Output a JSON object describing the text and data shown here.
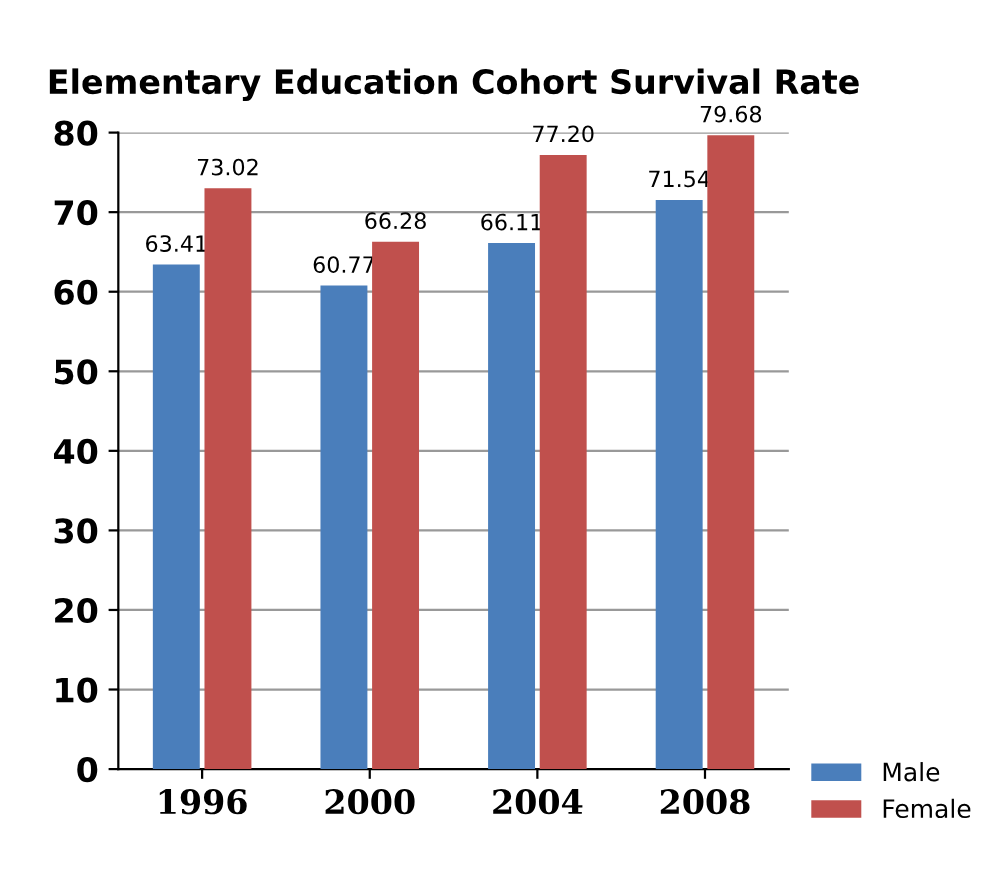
{
  "chart_data": {
    "type": "bar",
    "title": "Elementary Education Cohort Survival Rate",
    "categories": [
      "1996",
      "2000",
      "2004",
      "2008"
    ],
    "series": [
      {
        "name": "Male",
        "color": "#4a7ebb",
        "values": [
          63.41,
          60.77,
          66.11,
          71.54
        ],
        "value_labels": [
          "63.41",
          "60.77",
          "66.11",
          "71.54"
        ]
      },
      {
        "name": "Female",
        "color": "#c0504d",
        "values": [
          73.02,
          66.28,
          77.2,
          79.68
        ],
        "value_labels": [
          "73.02",
          "66.28",
          "77.20",
          "79.68"
        ]
      }
    ],
    "ylim": [
      0,
      80
    ],
    "yticks": [
      0,
      10,
      20,
      30,
      40,
      50,
      60,
      70,
      80
    ],
    "grid": "y",
    "legend": "bottom right"
  }
}
